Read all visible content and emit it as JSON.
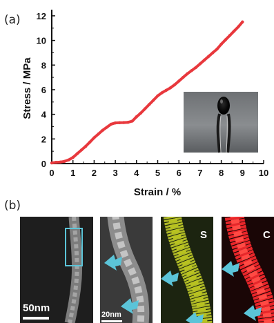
{
  "panel_a_label": "(a)",
  "panel_b_label": "(b)",
  "chart_data": {
    "type": "line",
    "xlabel": "Strain / %",
    "ylabel": "Stress / MPa",
    "xlim": [
      0,
      10
    ],
    "ylim": [
      0,
      12.5
    ],
    "x_ticks": [
      0,
      1,
      2,
      3,
      4,
      5,
      6,
      7,
      8,
      9,
      10
    ],
    "y_ticks": [
      0,
      2,
      4,
      6,
      8,
      10,
      12
    ],
    "grid": false,
    "line_color": "#e8383d",
    "x": [
      0,
      0.2,
      0.4,
      0.6,
      0.8,
      1.0,
      1.2,
      1.4,
      1.6,
      1.8,
      2.0,
      2.2,
      2.4,
      2.6,
      2.8,
      3.0,
      3.2,
      3.4,
      3.6,
      3.8,
      4.0,
      4.2,
      4.4,
      4.6,
      4.8,
      5.0,
      5.2,
      5.4,
      5.6,
      5.8,
      6.0,
      6.2,
      6.4,
      6.6,
      6.8,
      7.0,
      7.2,
      7.4,
      7.6,
      7.8,
      8.0,
      8.2,
      8.4,
      8.6,
      8.8,
      9.0
    ],
    "y": [
      0.05,
      0.1,
      0.12,
      0.18,
      0.3,
      0.5,
      0.8,
      1.1,
      1.4,
      1.75,
      2.1,
      2.4,
      2.7,
      2.95,
      3.2,
      3.3,
      3.32,
      3.33,
      3.35,
      3.45,
      3.8,
      4.1,
      4.45,
      4.8,
      5.15,
      5.5,
      5.75,
      5.95,
      6.15,
      6.4,
      6.7,
      7.0,
      7.3,
      7.55,
      7.8,
      8.1,
      8.4,
      8.7,
      9.0,
      9.3,
      9.7,
      10.05,
      10.4,
      10.75,
      11.1,
      11.5
    ]
  },
  "panel_b": {
    "colors": {
      "cyan_marker": "#5bc4d8",
      "sulfur_map": "#c8d42a",
      "carbon_map": "#e8262a"
    },
    "images": [
      {
        "scale_label": "50nm",
        "element": ""
      },
      {
        "scale_label": "20nm",
        "element": ""
      },
      {
        "scale_label": "",
        "element": "S"
      },
      {
        "scale_label": "",
        "element": "C"
      }
    ]
  }
}
